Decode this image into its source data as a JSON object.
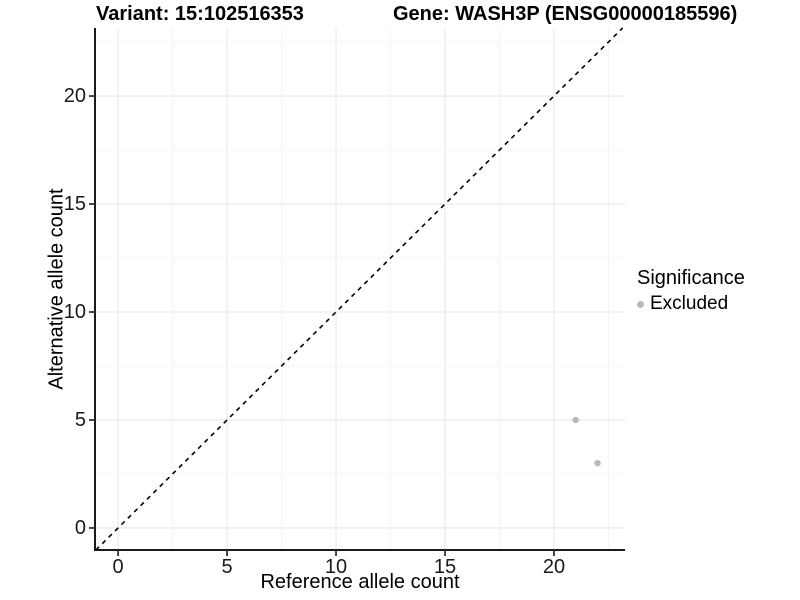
{
  "figure": {
    "title_left": "Variant: 15:102516353",
    "title_right": "Gene: WASH3P (ENSG00000185596)"
  },
  "chart_data": {
    "type": "scatter",
    "xlabel": "Reference allele count",
    "ylabel": "Alternative allele count",
    "xlim": [
      -1.06,
      23.26
    ],
    "ylim": [
      -1.02,
      23.15
    ],
    "x_ticks": [
      0,
      5,
      10,
      15,
      20
    ],
    "y_ticks": [
      0,
      5,
      10,
      15,
      20
    ],
    "x_minor_ticks": [
      2.5,
      7.5,
      12.5,
      17.5,
      22.5
    ],
    "y_minor_ticks": [
      2.5,
      7.5,
      12.5,
      17.5,
      22.5
    ],
    "grid": "major+minor",
    "series": [
      {
        "name": "Excluded",
        "color": "#b9b9b9",
        "points": [
          {
            "x": 21,
            "y": 5
          },
          {
            "x": 22,
            "y": 3
          }
        ]
      }
    ],
    "reference_line": {
      "type": "identity",
      "style": "dashed",
      "color": "#000000"
    },
    "legend": {
      "title": "Significance",
      "position": "right",
      "items": [
        {
          "label": "Excluded",
          "color": "#b9b9b9"
        }
      ]
    }
  },
  "colors": {
    "background": "#ffffff",
    "grid_major": "#e8e8e8",
    "grid_minor": "#f4f4f4",
    "axis_line": "#1a1a1a",
    "tick_mark": "#333333",
    "tick_label": "#1a1a1a",
    "point": "#b9b9b9"
  }
}
